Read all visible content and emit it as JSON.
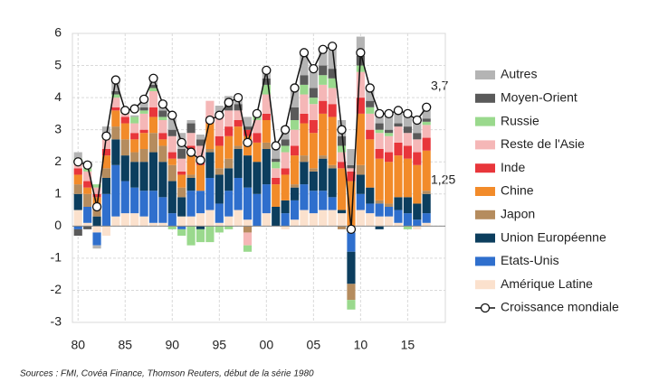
{
  "chart_data": {
    "type": "stacked-bar-line",
    "x": [
      1980,
      1981,
      1982,
      1983,
      1984,
      1985,
      1986,
      1987,
      1988,
      1989,
      1990,
      1991,
      1992,
      1993,
      1994,
      1995,
      1996,
      1997,
      1998,
      1999,
      2000,
      2001,
      2002,
      2003,
      2004,
      2005,
      2006,
      2007,
      2008,
      2009,
      2010,
      2011,
      2012,
      2013,
      2014,
      2015,
      2016,
      2017
    ],
    "xlim": [
      1979.4,
      2019
    ],
    "xticks": [
      {
        "value": 1980,
        "label": "80"
      },
      {
        "value": 1985,
        "label": "85"
      },
      {
        "value": 1990,
        "label": "90"
      },
      {
        "value": 1995,
        "label": "95"
      },
      {
        "value": 2000,
        "label": "00"
      },
      {
        "value": 2005,
        "label": "05"
      },
      {
        "value": 2010,
        "label": "10"
      },
      {
        "value": 2015,
        "label": "15"
      }
    ],
    "ylim": [
      -3,
      6
    ],
    "yticks": [
      -3,
      -2,
      -1,
      0,
      1,
      2,
      3,
      4,
      5,
      6
    ],
    "grid": true,
    "series": [
      {
        "name": "Amérique Latine",
        "color": "#fbe1cd",
        "values": [
          0.5,
          0.1,
          -0.2,
          -0.3,
          0.3,
          0.4,
          0.4,
          0.3,
          0.1,
          0.1,
          0.0,
          0.3,
          0.3,
          0.4,
          0.5,
          0.1,
          0.3,
          0.5,
          0.2,
          0.0,
          0.4,
          0.0,
          -0.1,
          0.2,
          0.5,
          0.4,
          0.5,
          0.5,
          0.4,
          -0.2,
          0.5,
          0.4,
          0.3,
          0.3,
          0.1,
          0.0,
          -0.1,
          0.1
        ]
      },
      {
        "name": "Etats-Unis",
        "color": "#2f6fcd",
        "values": [
          -0.1,
          0.5,
          -0.4,
          1.0,
          1.6,
          1.0,
          0.8,
          0.8,
          1.0,
          0.8,
          0.4,
          -0.1,
          0.8,
          0.7,
          1.0,
          0.6,
          0.8,
          1.0,
          1.0,
          1.0,
          0.9,
          0.0,
          0.4,
          0.6,
          0.8,
          0.7,
          0.6,
          0.4,
          0.0,
          -0.6,
          0.5,
          0.3,
          0.4,
          0.3,
          0.4,
          0.4,
          0.2,
          0.3
        ]
      },
      {
        "name": "Union Européenne",
        "color": "#0c3e5e",
        "values": [
          0.5,
          0.0,
          0.3,
          0.5,
          0.8,
          0.8,
          0.8,
          0.9,
          1.2,
          1.1,
          1.0,
          0.6,
          0.4,
          -0.1,
          0.8,
          0.9,
          0.7,
          0.9,
          1.0,
          1.0,
          1.1,
          0.6,
          0.4,
          0.4,
          0.7,
          0.6,
          1.0,
          0.9,
          0.1,
          -1.0,
          0.6,
          0.5,
          -0.1,
          0.0,
          0.4,
          0.5,
          0.5,
          0.6
        ]
      },
      {
        "name": "Japon",
        "color": "#b58c5e",
        "values": [
          0.3,
          0.4,
          0.3,
          0.3,
          0.4,
          0.5,
          0.3,
          0.4,
          0.6,
          0.5,
          0.5,
          0.3,
          0.1,
          0.0,
          0.1,
          0.2,
          0.3,
          0.1,
          -0.2,
          0.0,
          0.2,
          0.0,
          0.0,
          0.1,
          0.2,
          0.1,
          0.1,
          0.1,
          -0.1,
          -0.5,
          0.3,
          0.0,
          0.1,
          0.1,
          0.0,
          0.0,
          0.0,
          0.1
        ]
      },
      {
        "name": "Chine",
        "color": "#f28b2a",
        "values": [
          0.3,
          0.2,
          0.3,
          0.4,
          0.5,
          0.5,
          0.4,
          0.5,
          0.5,
          0.2,
          0.2,
          0.4,
          0.7,
          0.8,
          0.8,
          0.7,
          0.7,
          0.6,
          0.6,
          0.6,
          0.7,
          0.7,
          0.8,
          0.9,
          1.0,
          1.1,
          1.3,
          1.5,
          1.3,
          1.4,
          1.6,
          1.5,
          1.3,
          1.3,
          1.3,
          1.2,
          1.2,
          1.25
        ]
      },
      {
        "name": "Inde",
        "color": "#e8363b",
        "values": [
          0.2,
          0.2,
          0.1,
          0.2,
          0.1,
          0.2,
          0.2,
          0.1,
          0.3,
          0.2,
          0.2,
          0.1,
          0.2,
          0.2,
          0.2,
          0.3,
          0.3,
          0.2,
          0.2,
          0.3,
          0.2,
          0.2,
          0.2,
          0.3,
          0.3,
          0.4,
          0.4,
          0.4,
          0.2,
          0.3,
          0.5,
          0.3,
          0.3,
          0.3,
          0.4,
          0.4,
          0.4,
          0.4
        ]
      },
      {
        "name": "Reste de l'Asie",
        "color": "#f5b7b7",
        "values": [
          0.2,
          0.3,
          0.2,
          0.3,
          0.3,
          0.1,
          0.3,
          0.5,
          0.5,
          0.4,
          0.5,
          0.4,
          0.4,
          0.4,
          0.5,
          0.6,
          0.5,
          0.3,
          -0.4,
          0.4,
          0.6,
          0.3,
          0.5,
          0.5,
          0.6,
          0.5,
          0.5,
          0.5,
          0.3,
          0.1,
          0.8,
          0.5,
          0.5,
          0.5,
          0.5,
          0.4,
          0.4,
          0.4
        ]
      },
      {
        "name": "Russie",
        "color": "#9ad98d",
        "values": [
          0.1,
          0.1,
          0.1,
          0.1,
          0.1,
          0.1,
          0.2,
          0.1,
          0.1,
          0.1,
          -0.1,
          -0.2,
          -0.6,
          -0.4,
          -0.5,
          -0.2,
          -0.1,
          0.0,
          -0.2,
          0.2,
          0.3,
          0.2,
          0.2,
          0.3,
          0.3,
          0.2,
          0.3,
          0.3,
          0.2,
          -0.3,
          0.2,
          0.2,
          0.1,
          0.1,
          0.0,
          -0.1,
          0.0,
          0.1
        ]
      },
      {
        "name": "Moyen-Orient",
        "color": "#5a5a5a",
        "values": [
          -0.2,
          -0.1,
          0.0,
          0.1,
          0.1,
          0.0,
          0.0,
          0.1,
          0.1,
          0.2,
          0.2,
          0.3,
          0.3,
          0.2,
          0.0,
          0.1,
          0.2,
          0.2,
          0.1,
          0.0,
          0.2,
          0.1,
          0.2,
          0.4,
          0.3,
          0.3,
          0.3,
          0.3,
          0.3,
          0.1,
          0.3,
          0.2,
          0.2,
          0.1,
          0.1,
          0.2,
          0.2,
          0.1
        ]
      },
      {
        "name": "Autres",
        "color": "#b4b4b4",
        "values": [
          0.2,
          0.2,
          -0.1,
          0.2,
          0.35,
          0.0,
          0.05,
          0.25,
          0.2,
          0.3,
          0.35,
          0.5,
          0.1,
          0.15,
          0.0,
          0.25,
          0.25,
          0.2,
          0.3,
          0.0,
          0.25,
          0.4,
          0.4,
          0.6,
          0.7,
          0.5,
          0.5,
          0.7,
          0.5,
          0.5,
          0.6,
          0.4,
          0.4,
          0.5,
          0.4,
          0.5,
          0.5,
          0.35
        ]
      }
    ],
    "line": {
      "name": "Croissance mondiale",
      "color": "#111111",
      "values": [
        2.0,
        1.9,
        0.6,
        2.8,
        4.55,
        3.6,
        3.65,
        3.95,
        4.6,
        3.8,
        3.45,
        2.6,
        2.3,
        2.05,
        3.3,
        3.45,
        3.85,
        4.0,
        2.6,
        3.5,
        4.85,
        2.5,
        3.0,
        4.3,
        5.4,
        4.9,
        5.5,
        5.6,
        3.0,
        -0.1,
        5.4,
        4.3,
        3.5,
        3.5,
        3.6,
        3.5,
        3.3,
        3.7
      ]
    },
    "annotations": [
      "3,7",
      "1,25"
    ],
    "source": "Sources : FMI, Covéa Finance, Thomson Reuters, début de la série 1980"
  }
}
